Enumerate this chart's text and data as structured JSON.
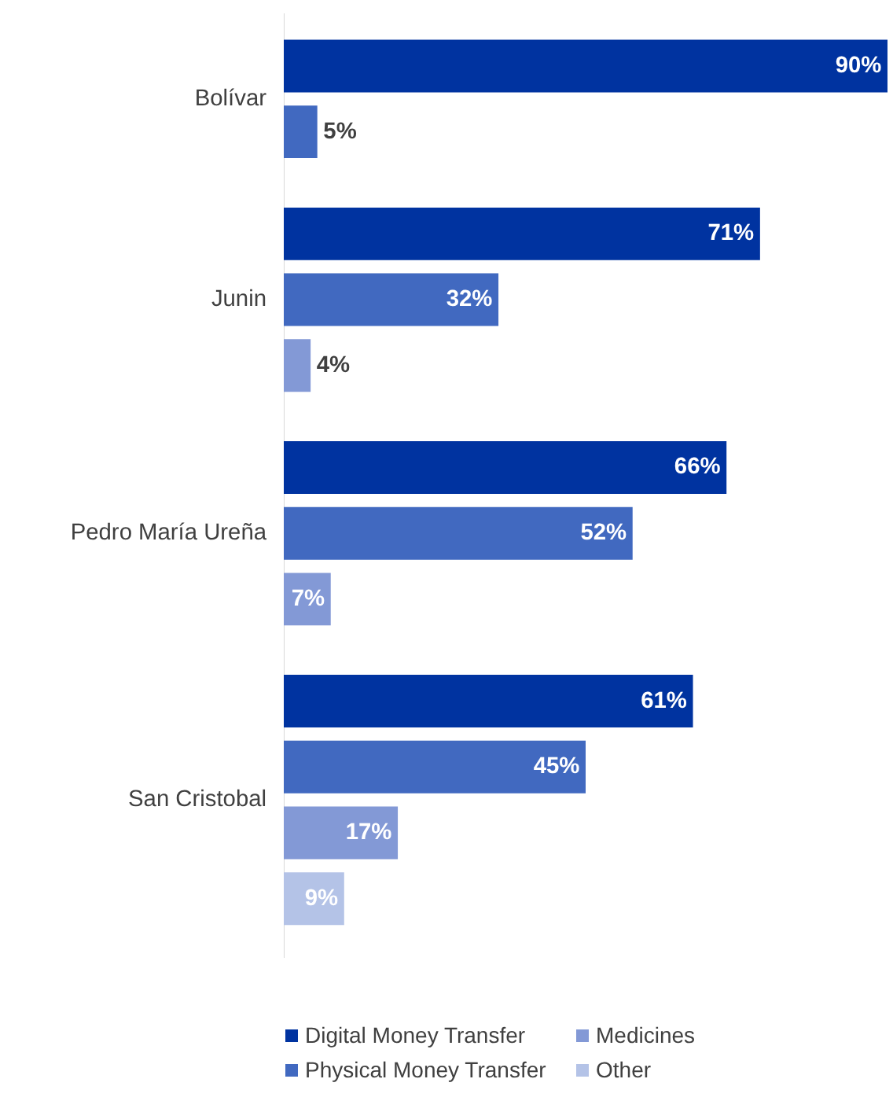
{
  "chart_data": {
    "type": "bar",
    "orientation": "horizontal",
    "categories": [
      "Bolívar",
      "Junin",
      "Pedro María Ureña",
      "San Cristobal"
    ],
    "series": [
      {
        "name": "Digital Money Transfer",
        "color": "#0033a0",
        "values": [
          90,
          71,
          66,
          61
        ],
        "value_labels": [
          "90%",
          "71%",
          "66%",
          "61%"
        ]
      },
      {
        "name": "Physical Money Transfer",
        "color": "#4169c0",
        "values": [
          5,
          32,
          52,
          45
        ],
        "value_labels": [
          "5%",
          "32%",
          "52%",
          "45%"
        ]
      },
      {
        "name": "Medicines",
        "color": "#8399d6",
        "values": [
          null,
          4,
          7,
          17
        ],
        "value_labels": [
          null,
          "4%",
          "7%",
          "17%"
        ]
      },
      {
        "name": "Other",
        "color": "#b4c3e7",
        "values": [
          null,
          null,
          null,
          9
        ],
        "value_labels": [
          null,
          null,
          null,
          "9%"
        ]
      }
    ],
    "legend": "bottom"
  }
}
